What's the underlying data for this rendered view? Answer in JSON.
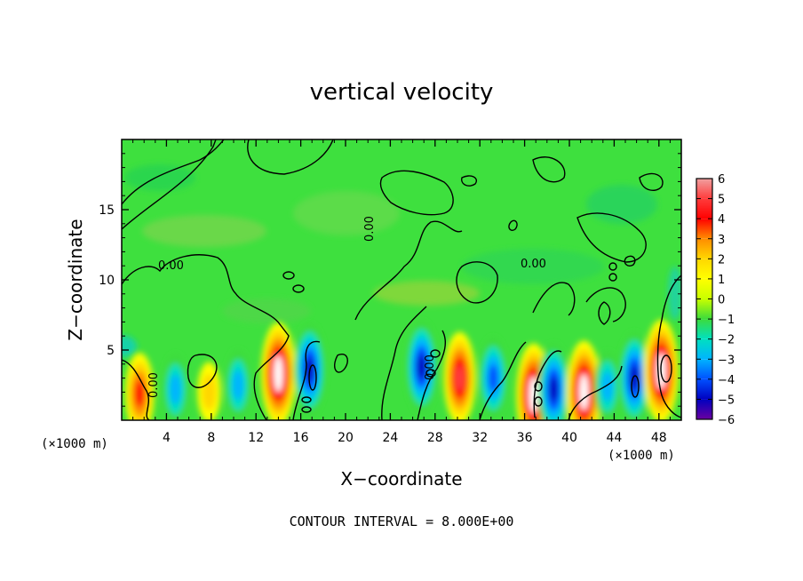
{
  "chart_data": {
    "type": "heatmap",
    "title": "vertical velocity",
    "xlabel": "X−coordinate",
    "ylabel": "Z−coordinate",
    "x_unit_left": "(×1000 m)",
    "x_unit_right": "(×1000 m)",
    "xlim": [
      0,
      50
    ],
    "ylim": [
      0,
      20
    ],
    "xticks": [
      4,
      8,
      12,
      16,
      20,
      24,
      28,
      32,
      36,
      40,
      44,
      48
    ],
    "yticks": [
      5,
      10,
      15
    ],
    "colorbar": {
      "ticks": [
        "6",
        "5",
        "4",
        "3",
        "2",
        "1",
        "0",
        "−1",
        "−2",
        "−3",
        "−4",
        "−5",
        "−6"
      ],
      "values": [
        6,
        5,
        4,
        3,
        2,
        1,
        0,
        -1,
        -2,
        -3,
        -4,
        -5,
        -6
      ],
      "colors": [
        "#f0a0a0",
        "#ff3c3c",
        "#ff0000",
        "#ff8c00",
        "#ffd700",
        "#ffff00",
        "#c8ff00",
        "#3cdc3c",
        "#00e0c0",
        "#00b4ff",
        "#0050ff",
        "#0000c0",
        "#6a00a0"
      ]
    },
    "contour_label": "0.00",
    "contour_interval_text": "CONTOUR INTERVAL =  8.000E+00",
    "features": [
      {
        "x": 1.6,
        "z": 1.9,
        "value": 4
      },
      {
        "x": 4.8,
        "z": 2.2,
        "value": -3
      },
      {
        "x": 7.8,
        "z": 2.0,
        "value": 2
      },
      {
        "x": 10.4,
        "z": 2.5,
        "value": -3
      },
      {
        "x": 14.0,
        "z": 3.3,
        "value": 6
      },
      {
        "x": 16.8,
        "z": 3.6,
        "value": -5
      },
      {
        "x": 26.8,
        "z": 3.8,
        "value": -5
      },
      {
        "x": 30.2,
        "z": 3.0,
        "value": 5
      },
      {
        "x": 33.2,
        "z": 3.0,
        "value": -4
      },
      {
        "x": 36.8,
        "z": 1.8,
        "value": 6
      },
      {
        "x": 38.6,
        "z": 2.2,
        "value": -5
      },
      {
        "x": 41.3,
        "z": 2.0,
        "value": 6
      },
      {
        "x": 43.4,
        "z": 2.4,
        "value": -3
      },
      {
        "x": 45.8,
        "z": 3.0,
        "value": -5
      },
      {
        "x": 48.2,
        "z": 3.5,
        "value": 6
      }
    ]
  }
}
